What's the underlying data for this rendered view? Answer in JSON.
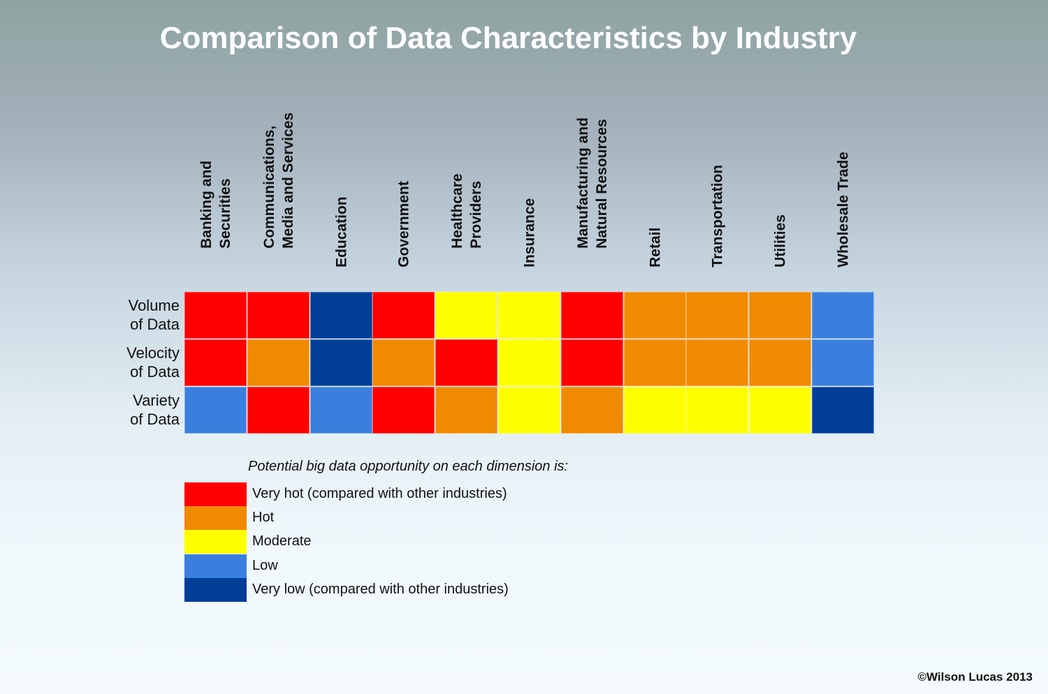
{
  "chart_data": {
    "type": "heatmap",
    "title": "Comparison of Data Characteristics by Industry",
    "columns": [
      "Banking and\nSecurities",
      "Communications,\nMedia and Services",
      "Education",
      "Government",
      "Healthcare\nProviders",
      "Insurance",
      "Manufacturing and\nNatural Resources",
      "Retail",
      "Transportation",
      "Utilities",
      "Wholesale Trade"
    ],
    "rows": [
      "Volume\nof Data",
      "Velocity\nof Data",
      "Variety\nof Data"
    ],
    "values": [
      [
        "very_hot",
        "very_hot",
        "very_low",
        "very_hot",
        "moderate",
        "moderate",
        "very_hot",
        "hot",
        "hot",
        "hot",
        "low"
      ],
      [
        "very_hot",
        "hot",
        "very_low",
        "hot",
        "very_hot",
        "moderate",
        "very_hot",
        "hot",
        "hot",
        "hot",
        "low"
      ],
      [
        "low",
        "very_hot",
        "low",
        "very_hot",
        "hot",
        "moderate",
        "hot",
        "moderate",
        "moderate",
        "moderate",
        "very_low"
      ]
    ],
    "legend": {
      "title": "Potential big data opportunity on each dimension is:",
      "entries": [
        {
          "key": "very_hot",
          "label": "Very hot (compared with other industries)",
          "color": "#ff0000"
        },
        {
          "key": "hot",
          "label": "Hot",
          "color": "#f08a00"
        },
        {
          "key": "moderate",
          "label": "Moderate",
          "color": "#ffff00"
        },
        {
          "key": "low",
          "label": "Low",
          "color": "#3b7fde"
        },
        {
          "key": "very_low",
          "label": "Very low (compared with other industries)",
          "color": "#013e98"
        }
      ]
    }
  },
  "credit": "©Wilson Lucas 2013"
}
